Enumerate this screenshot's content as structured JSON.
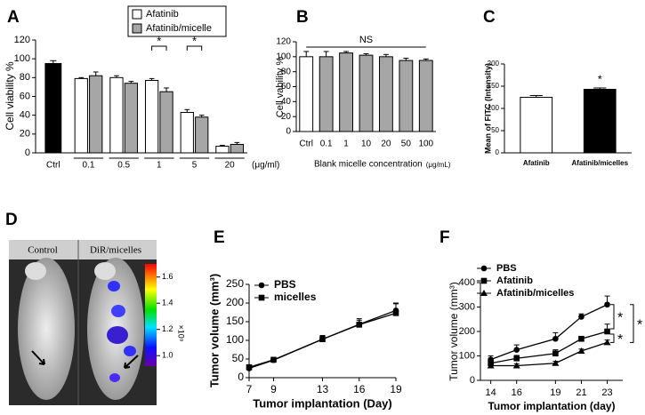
{
  "chart_data": [
    {
      "panel": "A",
      "type": "bar",
      "categories": [
        "Ctrl",
        "0.1",
        "0.5",
        "1",
        "5",
        "20"
      ],
      "x_unit": "(μg/ml)",
      "ylabel": "Cell viability %",
      "ylim": [
        0,
        120
      ],
      "yticks": [
        0,
        20,
        40,
        60,
        80,
        100,
        120
      ],
      "control": {
        "value": 95,
        "error": 3,
        "color": "#000000"
      },
      "series": [
        {
          "name": "Afatinib",
          "color": "#ffffff",
          "values": [
            null,
            79,
            80,
            77,
            43,
            7
          ],
          "errors": [
            null,
            1,
            2,
            2,
            3,
            1
          ]
        },
        {
          "name": "Afatinib/micelle",
          "color": "#a6a6a6",
          "values": [
            null,
            82,
            74,
            65,
            38,
            9
          ],
          "errors": [
            null,
            4,
            2,
            4,
            2,
            2
          ]
        }
      ],
      "annotations": [
        "*",
        "*"
      ]
    },
    {
      "panel": "B",
      "type": "bar",
      "categories": [
        "Ctrl",
        "0.1",
        "1",
        "10",
        "20",
        "50",
        "100"
      ],
      "xlabel": "Blank micelle concentration",
      "x_unit": "(μg/mL)",
      "ylabel": "Cell vability %",
      "ylim": [
        0,
        120
      ],
      "yticks": [
        0,
        20,
        40,
        60,
        80,
        100,
        120
      ],
      "values": [
        100,
        100,
        105,
        102,
        100,
        95,
        95
      ],
      "errors": [
        7,
        7,
        2,
        2,
        3,
        3,
        2
      ],
      "colors": [
        "#ffffff",
        "#a6a6a6",
        "#a6a6a6",
        "#a6a6a6",
        "#a6a6a6",
        "#a6a6a6",
        "#a6a6a6"
      ],
      "annotations": [
        "NS"
      ]
    },
    {
      "panel": "C",
      "type": "bar",
      "categories": [
        "Afatinib",
        "Afatinib/micelles"
      ],
      "ylabel": "Mean of FITC (Intensity)",
      "ylim": [
        0,
        200
      ],
      "yticks": [
        0,
        50,
        100,
        150,
        200
      ],
      "values": [
        125,
        143
      ],
      "errors": [
        4,
        3
      ],
      "colors": [
        "#ffffff",
        "#000000"
      ],
      "annotations": [
        "*"
      ]
    },
    {
      "panel": "D",
      "type": "image",
      "labels": [
        "Control",
        "DiR/micelles"
      ],
      "colorbar": {
        "ylim": [
          0.92,
          1.7
        ],
        "yticks": [
          {
            "value": 1,
            "label": "1.0"
          },
          1.2,
          1.4,
          1.6
        ],
        "unit": "×10⁹"
      }
    },
    {
      "panel": "E",
      "type": "line",
      "xlabel": "Tumor implantation (Day)",
      "ylabel": "Tumor volume (mm³)",
      "x": [
        7,
        9,
        13,
        16,
        19
      ],
      "xlim": [
        7,
        19
      ],
      "xticks": [
        7,
        9,
        13,
        16,
        19
      ],
      "ylim": [
        0,
        250
      ],
      "yticks": [
        0,
        50,
        100,
        150,
        200,
        250
      ],
      "series": [
        {
          "name": "PBS",
          "color": "#000000",
          "marker": "circle",
          "values": [
            25,
            47,
            103,
            143,
            180
          ],
          "errors": [
            5,
            6,
            10,
            15,
            20
          ]
        },
        {
          "name": "micelles",
          "color": "#000000",
          "marker": "square",
          "values": [
            28,
            48,
            103,
            142,
            173
          ],
          "errors": [
            5,
            5,
            8,
            12,
            25
          ]
        }
      ],
      "annotations": []
    },
    {
      "panel": "F",
      "type": "line",
      "xlabel": "Tumor implantation (day)",
      "ylabel": "Tumor volume (mm³)",
      "x": [
        14,
        16,
        19,
        21,
        23
      ],
      "xlim": [
        13.2,
        24.2
      ],
      "xticks": [
        14,
        16,
        19,
        21,
        23
      ],
      "ylim": [
        0,
        400
      ],
      "yticks": [
        0,
        100,
        200,
        300,
        400
      ],
      "series": [
        {
          "name": "PBS",
          "color": "#000000",
          "marker": "circle",
          "values": [
            85,
            125,
            170,
            260,
            310
          ],
          "errors": [
            15,
            20,
            25,
            12,
            35
          ]
        },
        {
          "name": "Afatinib",
          "color": "#000000",
          "marker": "square",
          "values": [
            70,
            90,
            110,
            170,
            200
          ],
          "errors": [
            10,
            12,
            15,
            10,
            30
          ]
        },
        {
          "name": "Afatinib/micelles",
          "color": "#000000",
          "marker": "triangle",
          "values": [
            60,
            60,
            70,
            120,
            155
          ],
          "errors": [
            8,
            8,
            8,
            8,
            10
          ]
        }
      ],
      "annotations": [
        "*",
        "*",
        "*"
      ]
    }
  ]
}
